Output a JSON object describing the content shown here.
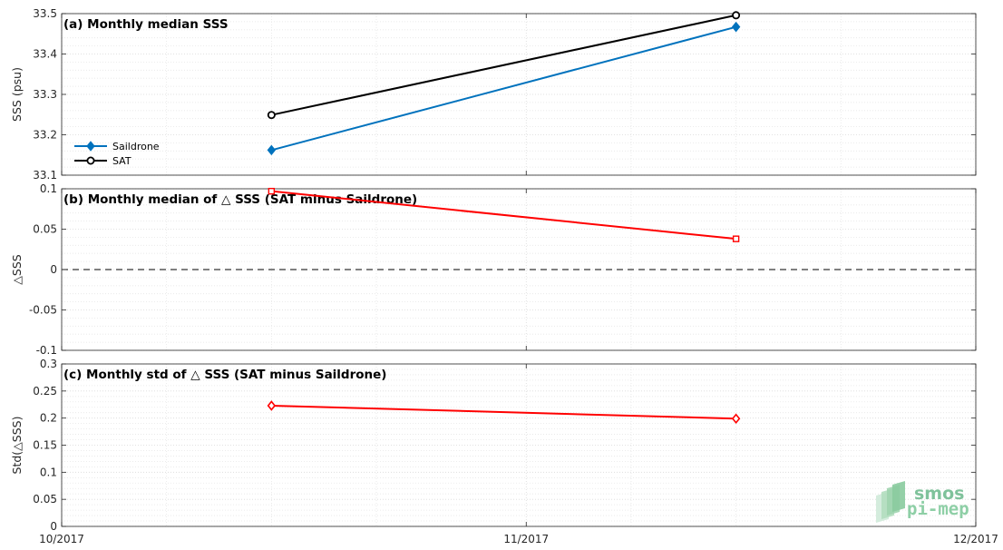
{
  "chart_data": [
    {
      "type": "line",
      "panel": "a",
      "title": "(a) Monthly median SSS",
      "ylabel": "SSS (psu)",
      "ylim": [
        33.1,
        33.5
      ],
      "yticks": [
        33.1,
        33.2,
        33.3,
        33.4,
        33.5
      ],
      "ytick_labels": [
        "33.1",
        "33.2",
        "33.3",
        "33.4",
        "33.5"
      ],
      "grid": true,
      "legend_position": "bottom-left",
      "series": [
        {
          "name": "Saildrone",
          "color": "#0072bd",
          "marker": "diamond",
          "x": [
            "2017-10-15",
            "2017-11-15"
          ],
          "y": [
            33.162,
            33.467
          ]
        },
        {
          "name": "SAT",
          "color": "#000000",
          "marker": "circle",
          "x": [
            "2017-10-15",
            "2017-11-15"
          ],
          "y": [
            33.249,
            33.496
          ]
        }
      ]
    },
    {
      "type": "line",
      "panel": "b",
      "title": "(b) Monthly median of △ SSS (SAT minus Saildrone)",
      "ylabel": "△SSS",
      "ylim": [
        -0.1,
        0.1
      ],
      "yticks": [
        -0.1,
        -0.05,
        0,
        0.05,
        0.1
      ],
      "ytick_labels": [
        "-0.1",
        "-0.05",
        "0",
        "0.05",
        "0.1"
      ],
      "grid": true,
      "zero_line": "dashed",
      "series": [
        {
          "color": "#ff0000",
          "marker": "square",
          "x": [
            "2017-10-15",
            "2017-11-15"
          ],
          "y": [
            0.097,
            0.038
          ]
        }
      ]
    },
    {
      "type": "line",
      "panel": "c",
      "title": "(c) Monthly std of △ SSS (SAT minus Saildrone)",
      "ylabel": "Std(△SSS)",
      "ylim": [
        0,
        0.3
      ],
      "yticks": [
        0,
        0.05,
        0.1,
        0.15,
        0.2,
        0.25,
        0.3
      ],
      "ytick_labels": [
        "0",
        "0.05",
        "0.1",
        "0.15",
        "0.2",
        "0.25",
        "0.3"
      ],
      "grid": true,
      "series": [
        {
          "color": "#ff0000",
          "marker": "diamond",
          "x": [
            "2017-10-15",
            "2017-11-15"
          ],
          "y": [
            0.223,
            0.199
          ]
        }
      ]
    }
  ],
  "xaxis": {
    "xlim": [
      "2017-10-01",
      "2017-12-01"
    ],
    "ticks": [
      "10/2017",
      "11/2017",
      "12/2017"
    ]
  },
  "logo": {
    "line1": "smos",
    "line2": "pi-mep"
  }
}
